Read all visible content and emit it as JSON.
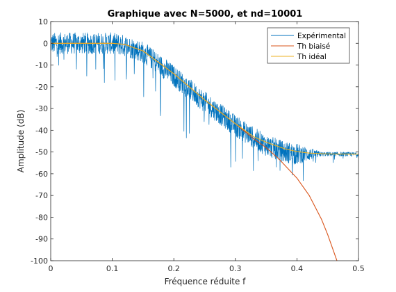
{
  "chart_data": {
    "type": "line",
    "title": "Graphique avec N=5000, et nd=10001",
    "xlabel": "Fréquence réduite f",
    "ylabel": "Amplitude (dB)",
    "xlim": [
      0,
      0.5
    ],
    "ylim": [
      -100,
      10
    ],
    "x_ticks": [
      0,
      0.1,
      0.2,
      0.3,
      0.4,
      0.5
    ],
    "x_tick_labels": [
      "0",
      "0.1",
      "0.2",
      "0.3",
      "0.4",
      "0.5"
    ],
    "y_ticks": [
      10,
      0,
      -10,
      -20,
      -30,
      -40,
      -50,
      -60,
      -70,
      -80,
      -90,
      -100
    ],
    "y_tick_labels": [
      "10",
      "0",
      "-10",
      "-20",
      "-30",
      "-40",
      "-50",
      "-60",
      "-70",
      "-80",
      "-90",
      "-100"
    ],
    "grid": false,
    "legend_position": "top-right",
    "series": [
      {
        "name": "Expérimental",
        "color": "#0072BD",
        "style": "noisy",
        "x": [
          0,
          0.05,
          0.1,
          0.12,
          0.15,
          0.2,
          0.25,
          0.3,
          0.35,
          0.38,
          0.4,
          0.42,
          0.45,
          0.5
        ],
        "y": [
          0,
          0,
          0,
          -1,
          -4,
          -15,
          -27,
          -38,
          -47,
          -50,
          -51,
          -51,
          -51,
          -51
        ]
      },
      {
        "name": "Th biaisé",
        "color": "#D95319",
        "x": [
          0,
          0.05,
          0.1,
          0.12,
          0.15,
          0.2,
          0.25,
          0.3,
          0.33,
          0.35,
          0.37,
          0.38,
          0.4,
          0.42,
          0.44,
          0.45,
          0.46,
          0.465
        ],
        "y": [
          0,
          0,
          0,
          -0.5,
          -3.5,
          -14,
          -26,
          -37,
          -44,
          -48,
          -53,
          -56,
          -62,
          -70,
          -81,
          -88,
          -96,
          -100
        ]
      },
      {
        "name": "Th idéal",
        "color": "#EDB120",
        "x": [
          0,
          0.05,
          0.1,
          0.12,
          0.15,
          0.2,
          0.25,
          0.3,
          0.33,
          0.35,
          0.37,
          0.38,
          0.4,
          0.42,
          0.45,
          0.5
        ],
        "y": [
          0,
          0,
          0,
          -0.5,
          -3.5,
          -14,
          -26,
          -37,
          -43,
          -45.5,
          -47.5,
          -48.5,
          -49.8,
          -50.5,
          -50.9,
          -51
        ]
      }
    ]
  }
}
